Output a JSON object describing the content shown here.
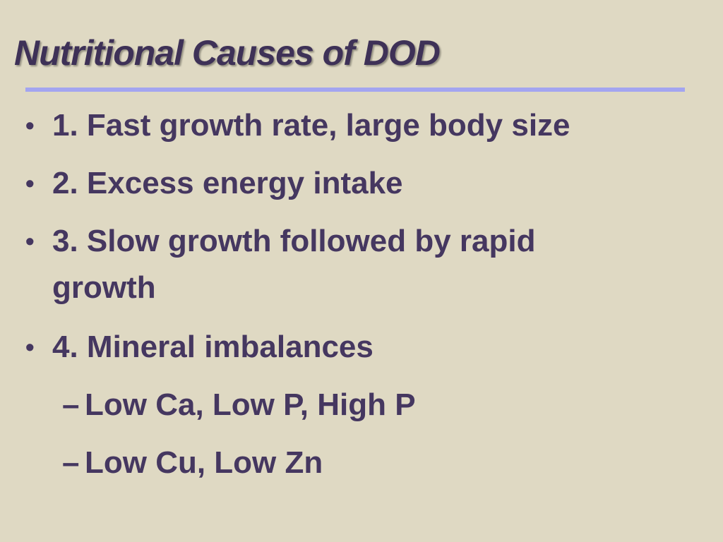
{
  "slide": {
    "title": "Nutritional Causes of DOD",
    "bullet_symbol": "•",
    "dash_symbol": "–",
    "items": [
      {
        "text": "1.  Fast growth rate, large body size"
      },
      {
        "text": "2.  Excess energy intake"
      },
      {
        "text": "3.  Slow growth followed by rapid",
        "continuation": "growth"
      },
      {
        "text": "4.  Mineral imbalances"
      }
    ],
    "subitems": [
      {
        "text": "Low Ca, Low P, High P"
      },
      {
        "text": "Low Cu, Low Zn"
      }
    ],
    "colors": {
      "background": "#dfd9c3",
      "text": "#453760",
      "rule": "#a3a5f0"
    }
  }
}
